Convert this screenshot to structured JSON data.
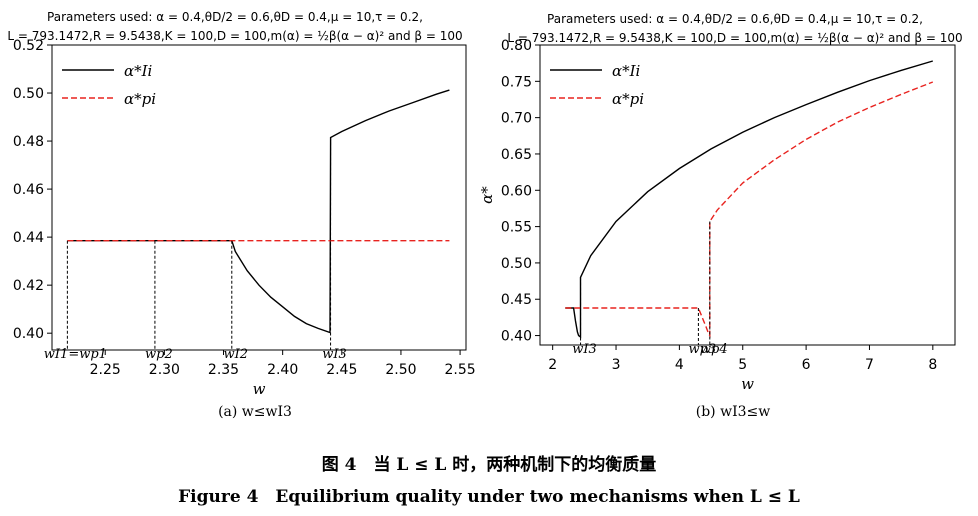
{
  "chart_data": [
    {
      "type": "line",
      "panel": "a",
      "param_line1": "Parameters used: α = 0.4,θD/2 = 0.6,θD = 0.4,μ = 10,τ = 0.2,",
      "param_line2": "L = 793.1472,R = 9.5438,K = 100,D = 100,m(α) = ½β(α − α)² and β = 100",
      "xlim": [
        2.205,
        2.555
      ],
      "ylim": [
        0.393,
        0.52
      ],
      "x_ticks": [
        2.25,
        2.3,
        2.35,
        2.4,
        2.45,
        2.5,
        2.55
      ],
      "y_ticks": [
        0.4,
        0.42,
        0.44,
        0.46,
        0.48,
        0.5,
        0.52
      ],
      "x_tick_labels": [
        "2.25",
        "2.30",
        "2.35",
        "2.40",
        "2.45",
        "2.50",
        "2.55"
      ],
      "y_tick_labels": [
        "0.40",
        "0.42",
        "0.44",
        "0.46",
        "0.48",
        "0.50",
        "0.52"
      ],
      "xlabel": "w",
      "ylabel": "",
      "legend": [
        "α*Ii",
        "α*pi"
      ],
      "legend_position": "upper-left",
      "series": [
        {
          "name": "α*Ii",
          "style": "solid",
          "color": "#000000",
          "x": [
            2.218,
            2.252,
            2.292,
            2.326,
            2.357,
            2.36,
            2.37,
            2.38,
            2.39,
            2.4,
            2.41,
            2.42,
            2.43,
            2.44,
            2.4405,
            2.45,
            2.47,
            2.49,
            2.51,
            2.53,
            2.541
          ],
          "y": [
            0.4385,
            0.4385,
            0.4385,
            0.4385,
            0.4385,
            0.434,
            0.426,
            0.42,
            0.415,
            0.411,
            0.407,
            0.404,
            0.402,
            0.4003,
            0.4815,
            0.484,
            0.4885,
            0.4925,
            0.496,
            0.4995,
            0.5012
          ]
        },
        {
          "name": "α*pi",
          "style": "dashed",
          "color": "#e8231f",
          "x": [
            2.218,
            2.541
          ],
          "y": [
            0.4385,
            0.4385
          ]
        }
      ],
      "markers": [
        {
          "x": 2.218,
          "y_top": 0.4385,
          "label": "wI1=wp1"
        },
        {
          "x": 2.292,
          "y_top": 0.4385,
          "label": "wp2"
        },
        {
          "x": 2.357,
          "y_top": 0.4385,
          "label": "wI2"
        },
        {
          "x": 2.4405,
          "y_top": 0.4815,
          "label": "wI3"
        }
      ],
      "subcaption": "(a) w≤wI3"
    },
    {
      "type": "line",
      "panel": "b",
      "param_line1": "Parameters used: α = 0.4,θD/2 = 0.6,θD = 0.4,μ = 10,τ = 0.2,",
      "param_line2": "L = 793.1472,R = 9.5438,K = 100,D = 100,m(α) = ½β(α − α)² and β = 100",
      "xlim": [
        1.8,
        8.35
      ],
      "ylim": [
        0.387,
        0.8
      ],
      "x_ticks": [
        2,
        3,
        4,
        5,
        6,
        7,
        8
      ],
      "y_ticks": [
        0.4,
        0.45,
        0.5,
        0.55,
        0.6,
        0.65,
        0.7,
        0.75,
        0.8
      ],
      "x_tick_labels": [
        "2",
        "3",
        "4",
        "5",
        "6",
        "7",
        "8"
      ],
      "y_tick_labels": [
        "0.40",
        "0.45",
        "0.50",
        "0.55",
        "0.60",
        "0.65",
        "0.70",
        "0.75",
        "0.80"
      ],
      "xlabel": "w",
      "ylabel": "α*",
      "legend": [
        "α*Ii",
        "α*pi"
      ],
      "legend_position": "upper-left",
      "series": [
        {
          "name": "α*Ii",
          "style": "solid",
          "color": "#000000",
          "x": [
            2.2,
            2.33,
            2.36,
            2.39,
            2.41,
            2.44,
            2.44,
            2.6,
            3.0,
            3.5,
            4.0,
            4.5,
            5.0,
            5.5,
            6.0,
            6.5,
            7.0,
            7.5,
            8.0
          ],
          "y": [
            0.438,
            0.438,
            0.42,
            0.405,
            0.4,
            0.398,
            0.48,
            0.51,
            0.557,
            0.598,
            0.63,
            0.657,
            0.68,
            0.7,
            0.718,
            0.735,
            0.751,
            0.765,
            0.778
          ]
        },
        {
          "name": "α*pi",
          "style": "dashed",
          "color": "#e8231f",
          "x": [
            2.2,
            4.3,
            4.36,
            4.42,
            4.46,
            4.48,
            4.48,
            4.6,
            5.0,
            5.5,
            6.0,
            6.5,
            7.0,
            7.5,
            8.0
          ],
          "y": [
            0.438,
            0.438,
            0.425,
            0.412,
            0.403,
            0.4,
            0.557,
            0.573,
            0.61,
            0.642,
            0.67,
            0.694,
            0.714,
            0.732,
            0.749
          ]
        }
      ],
      "markers": [
        {
          "x": 2.44,
          "y_top": 0.48,
          "label": "wI3"
        },
        {
          "x": 4.3,
          "y_top": 0.438,
          "label": "wp3"
        },
        {
          "x": 4.48,
          "y_top": 0.557,
          "label": "wp4"
        }
      ],
      "subcaption": "(b) wI3≤w"
    }
  ],
  "caption": {
    "zh": "图 4　当 L ≤ L 时，两种机制下的均衡质量",
    "en": "Figure 4　Equilibrium quality under two mechanisms when L ≤ L"
  }
}
